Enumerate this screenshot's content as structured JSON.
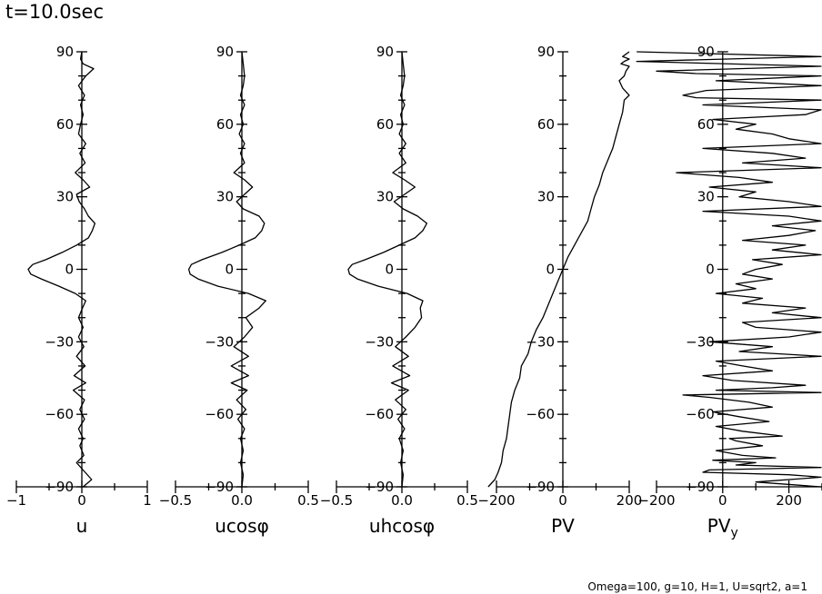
{
  "title": "t=10.0sec",
  "footer": "Omega=100, g=10, H=1, U=sqrt2, a=1",
  "chart_data": [
    {
      "type": "line",
      "xlabel": "u",
      "xlim": [
        -1,
        1
      ],
      "xticks": [
        -1,
        0,
        1
      ],
      "xtick_labels": [
        "−1",
        "0",
        "1"
      ],
      "ylim": [
        -90,
        90
      ],
      "yticks": [
        90,
        60,
        30,
        0,
        -30,
        -60,
        -90
      ],
      "ytick_labels": [
        "90",
        "60",
        "30",
        "0",
        "−30",
        "−60",
        "−90"
      ],
      "series": [
        {
          "y": [
            -90,
            -87,
            -84,
            -80,
            -77,
            -73,
            -70,
            -66,
            -62,
            -58,
            -54,
            -50,
            -47,
            -44,
            -40,
            -36,
            -32,
            -28,
            -24,
            -20,
            -16,
            -13,
            -10,
            -7,
            -4,
            -2,
            0,
            2,
            4,
            7,
            10,
            13,
            16,
            19,
            22,
            25,
            28,
            31,
            34,
            37,
            40,
            44,
            48,
            52,
            56,
            60,
            64,
            68,
            72,
            76,
            80,
            83,
            85,
            87,
            90
          ],
          "x": [
            0.02,
            0.15,
            0.05,
            -0.08,
            0.03,
            -0.03,
            0.02,
            -0.05,
            0.04,
            -0.03,
            0.04,
            -0.13,
            0.06,
            -0.12,
            0.05,
            -0.08,
            0.03,
            -0.05,
            0.02,
            -0.05,
            0.01,
            0.06,
            -0.1,
            -0.35,
            -0.62,
            -0.78,
            -0.82,
            -0.75,
            -0.55,
            -0.3,
            -0.08,
            0.1,
            0.16,
            0.2,
            0.1,
            0.04,
            -0.04,
            -0.08,
            0.12,
            0.02,
            -0.1,
            0.05,
            -0.03,
            0.06,
            -0.05,
            -0.02,
            0.02,
            -0.02,
            0.04,
            -0.05,
            0.06,
            0.18,
            0.02,
            -0.02,
            0.0
          ]
        }
      ]
    },
    {
      "type": "line",
      "xlabel": "ucosφ",
      "xlim": [
        -0.5,
        0.5
      ],
      "xticks": [
        -0.5,
        0,
        0.5
      ],
      "xtick_labels": [
        "−0.5",
        "0.0",
        "0.5"
      ],
      "ylim": [
        -90,
        90
      ],
      "yticks": [
        90,
        60,
        30,
        0,
        -30,
        -60,
        -90
      ],
      "ytick_labels": [
        "90",
        "60",
        "30",
        "0",
        "−30",
        "−60",
        "−90"
      ],
      "series": [
        {
          "y": [
            -90,
            -85,
            -80,
            -75,
            -70,
            -66,
            -62,
            -58,
            -54,
            -50,
            -47,
            -44,
            -40,
            -36,
            -32,
            -28,
            -24,
            -20,
            -16,
            -13,
            -10,
            -7,
            -4,
            -2,
            0,
            2,
            4,
            7,
            10,
            13,
            16,
            19,
            22,
            25,
            28,
            31,
            34,
            37,
            40,
            44,
            48,
            52,
            56,
            60,
            64,
            68,
            72,
            76,
            80,
            85,
            90
          ],
          "x": [
            0.0,
            0.01,
            -0.01,
            0.01,
            -0.01,
            0.02,
            -0.03,
            0.03,
            -0.04,
            0.04,
            -0.08,
            0.05,
            -0.08,
            0.05,
            -0.06,
            0.02,
            0.08,
            0.03,
            0.13,
            0.18,
            0.05,
            -0.18,
            -0.33,
            -0.39,
            -0.4,
            -0.38,
            -0.3,
            -0.15,
            -0.02,
            0.1,
            0.15,
            0.17,
            0.13,
            0.01,
            -0.04,
            0.02,
            0.08,
            0.02,
            -0.06,
            0.02,
            -0.01,
            0.02,
            -0.02,
            0.01,
            -0.01,
            0.02,
            -0.01,
            0.01,
            0.02,
            0.01,
            0.0
          ]
        }
      ]
    },
    {
      "type": "line",
      "xlabel": "uhcosφ",
      "xlim": [
        -0.5,
        0.5
      ],
      "xticks": [
        -0.5,
        0,
        0.5
      ],
      "xtick_labels": [
        "−0.5",
        "0.0",
        "0.5"
      ],
      "ylim": [
        -90,
        90
      ],
      "yticks": [
        90,
        60,
        30,
        0,
        -30,
        -60,
        -90
      ],
      "ytick_labels": [
        "90",
        "60",
        "30",
        "0",
        "−30",
        "−60",
        "−90"
      ],
      "series": [
        {
          "y": [
            -90,
            -85,
            -80,
            -75,
            -70,
            -66,
            -62,
            -58,
            -54,
            -50,
            -47,
            -44,
            -40,
            -36,
            -32,
            -28,
            -24,
            -20,
            -16,
            -13,
            -10,
            -7,
            -4,
            -2,
            0,
            2,
            4,
            7,
            10,
            13,
            16,
            19,
            22,
            25,
            28,
            31,
            34,
            37,
            40,
            44,
            48,
            52,
            56,
            60,
            64,
            68,
            72,
            76,
            80,
            85,
            90
          ],
          "x": [
            0.0,
            0.01,
            -0.01,
            0.01,
            -0.02,
            0.02,
            -0.03,
            0.03,
            -0.05,
            0.05,
            -0.08,
            0.06,
            -0.07,
            0.05,
            -0.05,
            0.03,
            0.1,
            0.15,
            0.14,
            0.16,
            0.04,
            -0.18,
            -0.34,
            -0.4,
            -0.41,
            -0.38,
            -0.28,
            -0.14,
            -0.02,
            0.1,
            0.16,
            0.19,
            0.12,
            0.01,
            -0.06,
            0.02,
            0.1,
            0.02,
            -0.07,
            0.03,
            -0.02,
            0.03,
            -0.02,
            0.01,
            -0.01,
            0.02,
            -0.01,
            0.01,
            0.02,
            0.01,
            0.0
          ]
        }
      ]
    },
    {
      "type": "line",
      "xlabel": "PV",
      "xlim": [
        -200,
        200
      ],
      "xticks": [
        -200,
        0,
        200
      ],
      "xtick_labels": [
        "−200",
        "0",
        "200"
      ],
      "ylim": [
        -90,
        90
      ],
      "yticks": [
        90,
        60,
        30,
        0,
        -30,
        -60,
        -90
      ],
      "ytick_labels": [
        "90",
        "60",
        "30",
        "0",
        "−30",
        "−60",
        "−90"
      ],
      "series": [
        {
          "y": [
            -90,
            -87,
            -84,
            -80,
            -75,
            -70,
            -65,
            -60,
            -55,
            -50,
            -45,
            -40,
            -35,
            -30,
            -25,
            -20,
            -15,
            -10,
            -5,
            0,
            5,
            10,
            15,
            20,
            25,
            30,
            35,
            40,
            45,
            50,
            55,
            60,
            65,
            70,
            72,
            75,
            78,
            80,
            82,
            84,
            85,
            86,
            87,
            88,
            90
          ],
          "x": [
            -225,
            -205,
            -195,
            -185,
            -180,
            -170,
            -165,
            -160,
            -155,
            -145,
            -130,
            -125,
            -105,
            -95,
            -80,
            -60,
            -45,
            -30,
            -15,
            0,
            15,
            35,
            55,
            75,
            85,
            95,
            110,
            120,
            135,
            150,
            160,
            170,
            180,
            185,
            200,
            180,
            170,
            185,
            190,
            200,
            175,
            185,
            210,
            180,
            215
          ]
        }
      ]
    },
    {
      "type": "line",
      "xlabel": "PVy",
      "xlim": [
        -200,
        300
      ],
      "xticks": [
        -200,
        0,
        200
      ],
      "xtick_labels": [
        "−200",
        "0",
        "200"
      ],
      "ylim": [
        -90,
        90
      ],
      "yticks": [
        90,
        60,
        30,
        0,
        -30,
        -60,
        -90
      ],
      "ytick_labels": [
        "90",
        "60",
        "30",
        "0",
        "−30",
        "−60",
        "−90"
      ],
      "series": [
        {
          "y": [
            -90,
            -88,
            -86,
            -85,
            -84,
            -83,
            -82,
            -81,
            -80,
            -79,
            -78,
            -77,
            -75,
            -73,
            -71,
            -70,
            -69,
            -67,
            -65,
            -63,
            -61,
            -59,
            -57,
            -55,
            -53,
            -52,
            -51,
            -50,
            -49,
            -48,
            -46,
            -44,
            -42,
            -40,
            -38,
            -36,
            -34,
            -32,
            -30,
            -28,
            -26,
            -24,
            -22,
            -20,
            -18,
            -16,
            -14,
            -12,
            -10,
            -8,
            -6,
            -4,
            -2,
            0,
            2,
            4,
            6,
            8,
            10,
            12,
            14,
            16,
            18,
            20,
            22,
            24,
            26,
            28,
            30,
            32,
            34,
            36,
            38,
            40,
            42,
            44,
            46,
            48,
            50,
            52,
            54,
            56,
            58,
            60,
            62,
            64,
            66,
            68,
            70,
            71,
            72,
            74,
            76,
            78,
            80,
            81,
            82,
            84,
            86,
            88,
            90
          ],
          "x": [
            300,
            100,
            300,
            200,
            -60,
            -40,
            300,
            40,
            100,
            -30,
            160,
            60,
            -20,
            120,
            40,
            20,
            180,
            60,
            -20,
            140,
            50,
            -30,
            150,
            80,
            -40,
            -120,
            300,
            -20,
            150,
            250,
            30,
            -60,
            150,
            60,
            -20,
            300,
            50,
            150,
            -40,
            200,
            300,
            100,
            60,
            300,
            150,
            250,
            60,
            120,
            -20,
            100,
            40,
            150,
            60,
            100,
            180,
            90,
            300,
            150,
            250,
            60,
            200,
            280,
            150,
            300,
            200,
            -60,
            300,
            200,
            50,
            100,
            -40,
            150,
            50,
            -140,
            300,
            60,
            250,
            150,
            -60,
            300,
            200,
            150,
            40,
            100,
            -30,
            250,
            300,
            -60,
            300,
            -80,
            -120,
            -50,
            300,
            -20,
            300,
            -80,
            -200,
            300,
            -260,
            300,
            -260
          ]
        }
      ]
    }
  ]
}
